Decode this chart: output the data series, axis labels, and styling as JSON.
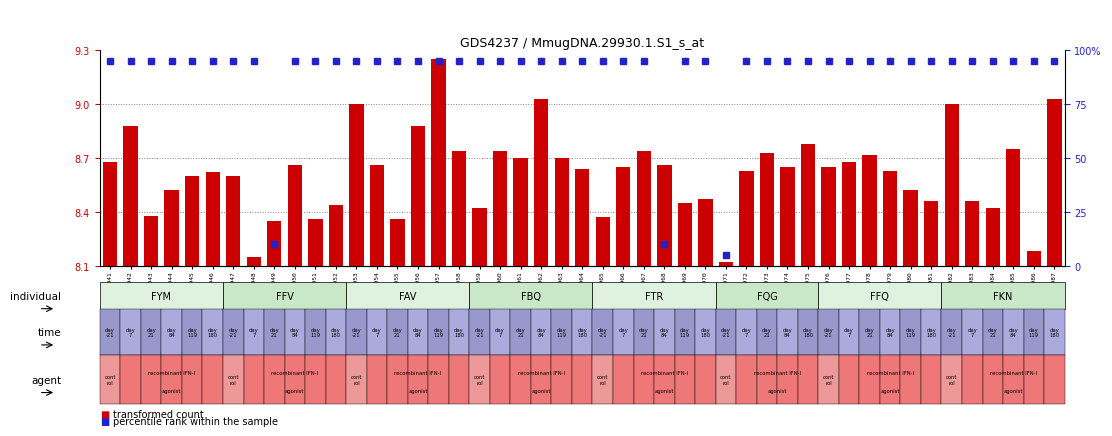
{
  "title": "GDS4237 / MmugDNA.29930.1.S1_s_at",
  "samples": [
    "GSM868941",
    "GSM868942",
    "GSM868943",
    "GSM868944",
    "GSM868945",
    "GSM868946",
    "GSM868947",
    "GSM868948",
    "GSM868949",
    "GSM868950",
    "GSM868951",
    "GSM868952",
    "GSM868953",
    "GSM868954",
    "GSM868955",
    "GSM868956",
    "GSM868957",
    "GSM868958",
    "GSM868959",
    "GSM868960",
    "GSM868961",
    "GSM868962",
    "GSM868963",
    "GSM868964",
    "GSM868965",
    "GSM868966",
    "GSM868967",
    "GSM868968",
    "GSM868969",
    "GSM868970",
    "GSM868971",
    "GSM868972",
    "GSM868973",
    "GSM868974",
    "GSM868975",
    "GSM868976",
    "GSM868977",
    "GSM868978",
    "GSM868979",
    "GSM868980",
    "GSM868981",
    "GSM868982",
    "GSM868983",
    "GSM868984",
    "GSM868985",
    "GSM868986",
    "GSM868987"
  ],
  "bar_values": [
    8.68,
    8.88,
    8.38,
    8.52,
    8.6,
    8.62,
    8.6,
    8.15,
    8.35,
    8.66,
    8.36,
    8.44,
    9.0,
    8.66,
    8.36,
    8.88,
    9.25,
    8.74,
    8.42,
    8.74,
    8.7,
    9.03,
    8.7,
    8.64,
    8.37,
    8.65,
    8.74,
    8.66,
    8.45,
    8.47,
    8.12,
    8.63,
    8.73,
    8.65,
    8.78,
    8.65,
    8.68,
    8.72,
    8.63,
    8.52,
    8.46,
    9.0,
    8.46,
    8.42,
    8.75,
    8.18,
    9.03
  ],
  "percentile_values": [
    95,
    95,
    95,
    95,
    95,
    95,
    95,
    95,
    10,
    95,
    95,
    95,
    95,
    95,
    95,
    95,
    95,
    95,
    95,
    95,
    95,
    95,
    95,
    95,
    95,
    95,
    95,
    10,
    95,
    95,
    5,
    95,
    95,
    95,
    95,
    95,
    95,
    95,
    95,
    95,
    95,
    95,
    95,
    95,
    95,
    95,
    95
  ],
  "groups": [
    "FYM",
    "FFV",
    "FAV",
    "FBQ",
    "FTR",
    "FQG",
    "FFQ",
    "FKN"
  ],
  "group_sizes": [
    6,
    6,
    6,
    6,
    6,
    5,
    6,
    6
  ],
  "time_labels_by_group": {
    "FYM": [
      "day\n-21",
      "day\n7",
      "day\n21",
      "day\n84",
      "day\n119",
      "day\n180"
    ],
    "FFV": [
      "day\n-21",
      "day\n7",
      "day\n21",
      "day\n84",
      "day\n119",
      "day\n180"
    ],
    "FAV": [
      "day\n-21",
      "day\n7",
      "day\n21",
      "day\n84",
      "day\n119",
      "day\n180"
    ],
    "FBQ": [
      "day\n-21",
      "day\n7",
      "day\n21",
      "day\n84",
      "day\n119",
      "day\n180"
    ],
    "FTR": [
      "day\n-21",
      "day\n7",
      "day\n21",
      "day\n84",
      "day\n119",
      "day\n180"
    ],
    "FQG": [
      "day\n-21",
      "day\n7",
      "day\n21",
      "day\n84",
      "day\n180"
    ],
    "FFQ": [
      "day\n-21",
      "day\n7",
      "day\n21",
      "day\n84",
      "day\n119",
      "day\n180"
    ],
    "FKN": [
      "day\n-21",
      "day\n7",
      "day\n21",
      "day\n84",
      "day\n119",
      "day\n180"
    ]
  },
  "ylim_left": [
    8.1,
    9.3
  ],
  "ylim_right": [
    0,
    100
  ],
  "yticks_left": [
    8.1,
    8.4,
    8.7,
    9.0,
    9.3
  ],
  "yticks_right": [
    0,
    25,
    50,
    75,
    100
  ],
  "bar_color": "#cc0000",
  "percentile_color": "#2222cc",
  "tick_label_color_left": "#cc0000",
  "tick_label_color_right": "#2222cc",
  "background_color": "#ffffff",
  "grid_color": "#888888",
  "agent_ctrl_color": "#ee9999",
  "agent_agon_color": "#ee7777"
}
